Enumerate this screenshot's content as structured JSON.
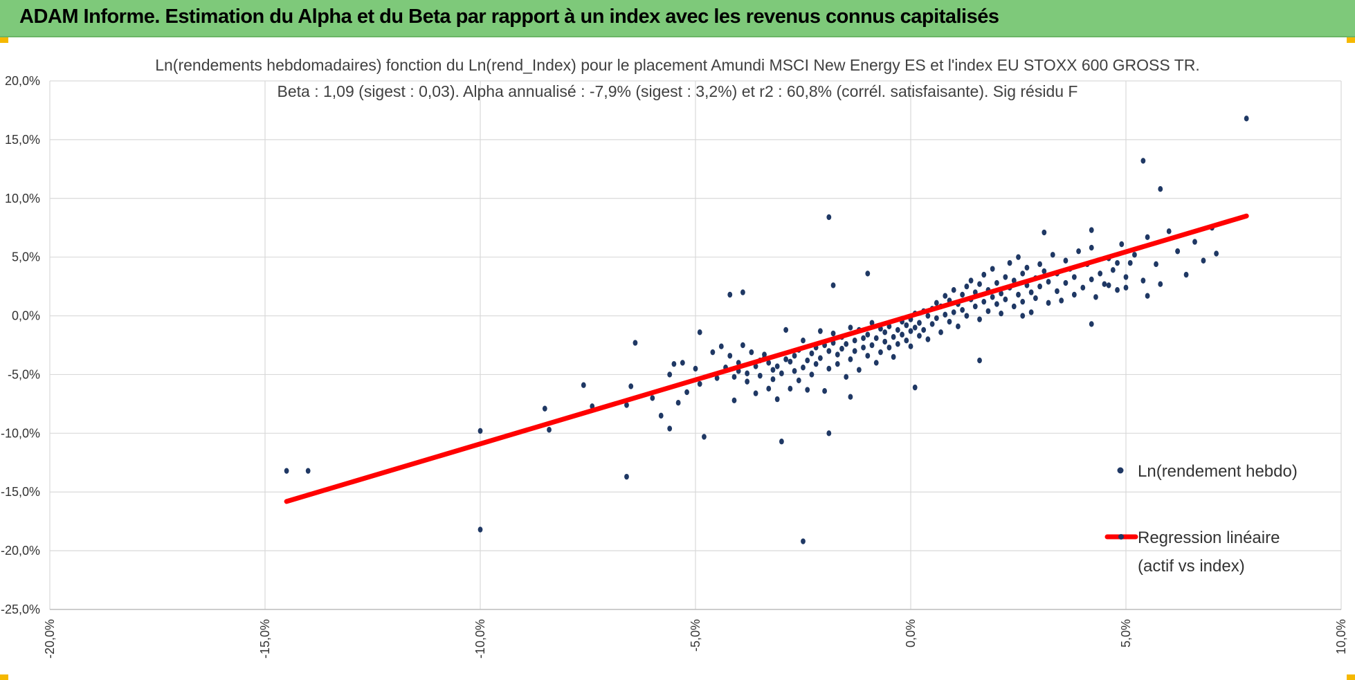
{
  "header": {
    "title": "ADAM Informe. Estimation du Alpha et du Beta par rapport à un index avec les revenus connus capitalisés",
    "background": "#7ec97a",
    "corner_color": "#f5b800"
  },
  "chart_data": {
    "type": "scatter",
    "title_line1": "Ln(rendements hebdomadaires) fonction du Ln(rend_Index) pour le placement Amundi MSCI New Energy ES et l'index EU STOXX 600 GROSS TR.",
    "title_line2": "Beta : 1,09 (sigest : 0,03).  Alpha annualisé : -7,9% (sigest : 3,2%) et r2 : 60,8% (corrél. satisfaisante). Sig résidu F",
    "xlim": [
      -0.2,
      0.1
    ],
    "ylim": [
      -0.25,
      0.2
    ],
    "x_ticks": [
      -0.2,
      -0.15,
      -0.1,
      -0.05,
      0.0,
      0.05,
      0.1
    ],
    "y_ticks": [
      0.2,
      0.15,
      0.1,
      0.05,
      0.0,
      -0.05,
      -0.1,
      -0.15,
      -0.2,
      -0.25
    ],
    "x_tick_labels": [
      "-20,0%",
      "-15,0%",
      "-10,0%",
      "-5,0%",
      "0,0%",
      "5,0%",
      "10,0%"
    ],
    "y_tick_labels": [
      "20,0%",
      "15,0%",
      "10,0%",
      "5,0%",
      "0,0%",
      "-5,0%",
      "-10,0%",
      "-15,0%",
      "-20,0%",
      "-25,0%"
    ],
    "grid": true,
    "legend_position": "right",
    "series": [
      {
        "name": "Ln(rendement hebdo)",
        "kind": "scatter",
        "color": "#1f3864",
        "points": [
          [
            -0.145,
            -0.132
          ],
          [
            -0.14,
            -0.132
          ],
          [
            -0.1,
            -0.098
          ],
          [
            -0.1,
            -0.182
          ],
          [
            -0.085,
            -0.079
          ],
          [
            -0.084,
            -0.097
          ],
          [
            -0.076,
            -0.059
          ],
          [
            -0.074,
            -0.077
          ],
          [
            -0.066,
            -0.137
          ],
          [
            -0.066,
            -0.076
          ],
          [
            -0.065,
            -0.06
          ],
          [
            -0.064,
            -0.023
          ],
          [
            -0.06,
            -0.07
          ],
          [
            -0.058,
            -0.085
          ],
          [
            -0.056,
            -0.05
          ],
          [
            -0.056,
            -0.096
          ],
          [
            -0.055,
            -0.041
          ],
          [
            -0.054,
            -0.074
          ],
          [
            -0.053,
            -0.04
          ],
          [
            -0.052,
            -0.065
          ],
          [
            -0.05,
            -0.045
          ],
          [
            -0.049,
            -0.014
          ],
          [
            -0.049,
            -0.058
          ],
          [
            -0.048,
            -0.103
          ],
          [
            -0.046,
            -0.031
          ],
          [
            -0.045,
            -0.053
          ],
          [
            -0.044,
            -0.026
          ],
          [
            -0.043,
            -0.044
          ],
          [
            -0.042,
            -0.034
          ],
          [
            -0.042,
            0.018
          ],
          [
            -0.041,
            -0.052
          ],
          [
            -0.041,
            -0.072
          ],
          [
            -0.04,
            -0.04
          ],
          [
            -0.04,
            -0.047
          ],
          [
            -0.039,
            0.02
          ],
          [
            -0.039,
            -0.025
          ],
          [
            -0.038,
            -0.056
          ],
          [
            -0.038,
            -0.049
          ],
          [
            -0.037,
            -0.031
          ],
          [
            -0.036,
            -0.043
          ],
          [
            -0.036,
            -0.066
          ],
          [
            -0.035,
            -0.038
          ],
          [
            -0.035,
            -0.051
          ],
          [
            -0.034,
            -0.033
          ],
          [
            -0.034,
            -0.036
          ],
          [
            -0.033,
            -0.04
          ],
          [
            -0.033,
            -0.062
          ],
          [
            -0.032,
            -0.054
          ],
          [
            -0.032,
            -0.046
          ],
          [
            -0.031,
            -0.071
          ],
          [
            -0.031,
            -0.043
          ],
          [
            -0.03,
            -0.107
          ],
          [
            -0.03,
            -0.049
          ],
          [
            -0.029,
            -0.037
          ],
          [
            -0.029,
            -0.012
          ],
          [
            -0.028,
            -0.039
          ],
          [
            -0.028,
            -0.062
          ],
          [
            -0.027,
            -0.047
          ],
          [
            -0.027,
            -0.034
          ],
          [
            -0.026,
            -0.029
          ],
          [
            -0.026,
            -0.055
          ],
          [
            -0.025,
            -0.044
          ],
          [
            -0.025,
            -0.021
          ],
          [
            -0.024,
            -0.038
          ],
          [
            -0.024,
            -0.063
          ],
          [
            -0.023,
            -0.032
          ],
          [
            -0.023,
            -0.05
          ],
          [
            -0.022,
            -0.027
          ],
          [
            -0.022,
            -0.041
          ],
          [
            -0.021,
            -0.013
          ],
          [
            -0.021,
            -0.036
          ],
          [
            -0.02,
            -0.025
          ],
          [
            -0.02,
            -0.064
          ],
          [
            -0.019,
            -0.03
          ],
          [
            -0.019,
            -0.045
          ],
          [
            -0.018,
            -0.015
          ],
          [
            -0.018,
            -0.023
          ],
          [
            -0.017,
            -0.033
          ],
          [
            -0.017,
            -0.041
          ],
          [
            -0.016,
            -0.018
          ],
          [
            -0.016,
            -0.028
          ],
          [
            -0.015,
            -0.024
          ],
          [
            -0.015,
            -0.052
          ],
          [
            -0.014,
            -0.01
          ],
          [
            -0.014,
            -0.037
          ],
          [
            -0.013,
            -0.021
          ],
          [
            -0.013,
            -0.03
          ],
          [
            -0.012,
            -0.012
          ],
          [
            -0.012,
            -0.046
          ],
          [
            -0.011,
            -0.019
          ],
          [
            -0.011,
            -0.027
          ],
          [
            -0.01,
            0.036
          ],
          [
            -0.01,
            -0.016
          ],
          [
            -0.01,
            -0.034
          ],
          [
            -0.009,
            -0.025
          ],
          [
            -0.009,
            -0.006
          ],
          [
            -0.008,
            -0.019
          ],
          [
            -0.008,
            -0.04
          ],
          [
            -0.007,
            -0.031
          ],
          [
            -0.007,
            -0.011
          ],
          [
            -0.006,
            -0.022
          ],
          [
            -0.006,
            -0.014
          ],
          [
            -0.005,
            -0.027
          ],
          [
            -0.005,
            -0.009
          ],
          [
            -0.004,
            -0.018
          ],
          [
            -0.004,
            -0.035
          ],
          [
            -0.003,
            -0.012
          ],
          [
            -0.003,
            -0.024
          ],
          [
            -0.002,
            -0.016
          ],
          [
            -0.002,
            -0.005
          ],
          [
            -0.001,
            -0.021
          ],
          [
            -0.001,
            -0.008
          ],
          [
            0.0,
            -0.013
          ],
          [
            0.0,
            -0.003
          ],
          [
            0.0,
            -0.026
          ],
          [
            0.001,
            -0.01
          ],
          [
            0.001,
            0.002
          ],
          [
            0.002,
            -0.017
          ],
          [
            0.002,
            -0.006
          ],
          [
            0.003,
            0.004
          ],
          [
            0.003,
            -0.012
          ],
          [
            0.004,
            0.0
          ],
          [
            0.004,
            -0.02
          ],
          [
            0.005,
            0.006
          ],
          [
            0.005,
            -0.007
          ],
          [
            0.006,
            0.011
          ],
          [
            0.006,
            -0.002
          ],
          [
            0.007,
            -0.014
          ],
          [
            0.007,
            0.008
          ],
          [
            0.008,
            0.001
          ],
          [
            0.008,
            0.017
          ],
          [
            0.009,
            -0.005
          ],
          [
            0.009,
            0.013
          ],
          [
            0.01,
            0.003
          ],
          [
            0.01,
            0.022
          ],
          [
            0.011,
            -0.009
          ],
          [
            0.011,
            0.01
          ],
          [
            0.012,
            0.018
          ],
          [
            0.012,
            0.005
          ],
          [
            0.013,
            0.025
          ],
          [
            0.013,
            0.0
          ],
          [
            0.014,
            0.014
          ],
          [
            0.014,
            0.03
          ],
          [
            0.015,
            0.008
          ],
          [
            0.015,
            0.02
          ],
          [
            0.016,
            -0.003
          ],
          [
            0.016,
            0.027
          ],
          [
            0.017,
            0.012
          ],
          [
            0.017,
            0.035
          ],
          [
            0.018,
            0.004
          ],
          [
            0.018,
            0.022
          ],
          [
            0.019,
            0.016
          ],
          [
            0.019,
            0.04
          ],
          [
            0.02,
            0.01
          ],
          [
            0.02,
            0.028
          ],
          [
            0.021,
            0.019
          ],
          [
            0.021,
            0.002
          ],
          [
            0.022,
            0.033
          ],
          [
            0.022,
            0.014
          ],
          [
            0.023,
            0.045
          ],
          [
            0.023,
            0.024
          ],
          [
            0.024,
            0.008
          ],
          [
            0.024,
            0.03
          ],
          [
            0.025,
            0.018
          ],
          [
            0.025,
            0.05
          ],
          [
            0.026,
            0.036
          ],
          [
            0.026,
            0.012
          ],
          [
            0.027,
            0.026
          ],
          [
            0.027,
            0.041
          ],
          [
            0.028,
            0.02
          ],
          [
            0.028,
            0.003
          ],
          [
            0.029,
            0.032
          ],
          [
            0.029,
            0.015
          ],
          [
            0.03,
            0.044
          ],
          [
            0.03,
            0.025
          ],
          [
            0.031,
            0.038
          ],
          [
            0.032,
            0.011
          ],
          [
            0.032,
            0.029
          ],
          [
            0.033,
            0.052
          ],
          [
            0.034,
            0.021
          ],
          [
            0.034,
            0.036
          ],
          [
            0.035,
            0.013
          ],
          [
            0.036,
            0.047
          ],
          [
            0.036,
            0.028
          ],
          [
            0.037,
            0.04
          ],
          [
            0.038,
            0.018
          ],
          [
            0.038,
            0.033
          ],
          [
            0.039,
            0.055
          ],
          [
            0.04,
            0.024
          ],
          [
            0.041,
            0.044
          ],
          [
            0.042,
            0.031
          ],
          [
            0.042,
            0.058
          ],
          [
            0.043,
            0.016
          ],
          [
            0.044,
            0.036
          ],
          [
            0.045,
            0.027
          ],
          [
            0.046,
            0.049
          ],
          [
            0.047,
            0.039
          ],
          [
            0.048,
            0.022
          ],
          [
            0.049,
            0.061
          ],
          [
            0.05,
            0.033
          ],
          [
            0.051,
            0.045
          ],
          [
            0.052,
            0.052
          ],
          [
            0.054,
            0.03
          ],
          [
            0.055,
            0.067
          ],
          [
            0.057,
            0.044
          ],
          [
            0.058,
            0.027
          ],
          [
            0.06,
            0.072
          ],
          [
            0.062,
            0.055
          ],
          [
            0.064,
            0.035
          ],
          [
            0.066,
            0.063
          ],
          [
            0.068,
            0.047
          ],
          [
            0.07,
            0.075
          ],
          [
            0.031,
            0.071
          ],
          [
            0.042,
            0.073
          ],
          [
            0.042,
            -0.007
          ],
          [
            0.046,
            0.026
          ],
          [
            0.048,
            0.045
          ],
          [
            0.05,
            0.024
          ],
          [
            0.054,
            0.132
          ],
          [
            0.055,
            0.017
          ],
          [
            0.058,
            0.108
          ],
          [
            0.062,
            0.055
          ],
          [
            0.071,
            0.053
          ],
          [
            0.078,
            0.168
          ],
          [
            -0.019,
            0.084
          ],
          [
            -0.018,
            0.026
          ],
          [
            -0.019,
            -0.1
          ],
          [
            -0.025,
            -0.192
          ],
          [
            -0.014,
            -0.069
          ],
          [
            0.001,
            -0.061
          ],
          [
            0.016,
            -0.038
          ],
          [
            0.026,
            0.0
          ]
        ]
      },
      {
        "name": "Regression linéaire (actif vs index)",
        "name_line1": "Regression linéaire",
        "name_line2": "(actif vs index)",
        "kind": "line",
        "color": "#ff0000",
        "slope": 1.09,
        "intercept": 0.0,
        "x_range": [
          -0.145,
          0.078
        ]
      }
    ]
  }
}
